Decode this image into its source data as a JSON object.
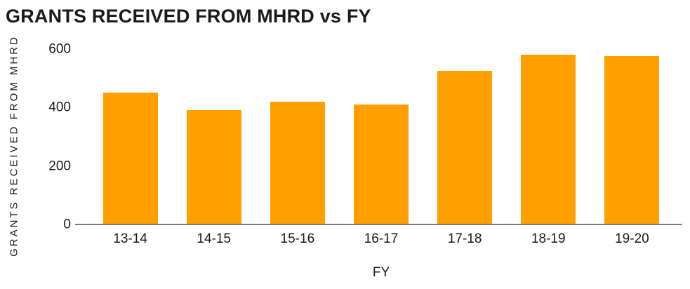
{
  "chart_data": {
    "type": "bar",
    "title": "GRANTS RECEIVED FROM MHRD vs FY",
    "xlabel": "FY",
    "ylabel": "GRANTS RECEIVED FROM MHRD",
    "categories": [
      "13-14",
      "14-15",
      "15-16",
      "16-17",
      "17-18",
      "18-19",
      "19-20"
    ],
    "values": [
      450,
      390,
      420,
      410,
      525,
      580,
      575
    ],
    "ylim": [
      0,
      600
    ],
    "yticks": [
      0,
      200,
      400,
      600
    ],
    "grid": false,
    "legend": false,
    "colors": {
      "bar": "#FFA000",
      "axis_line": "#7a7a7a",
      "text": "#1a1a1a"
    }
  }
}
